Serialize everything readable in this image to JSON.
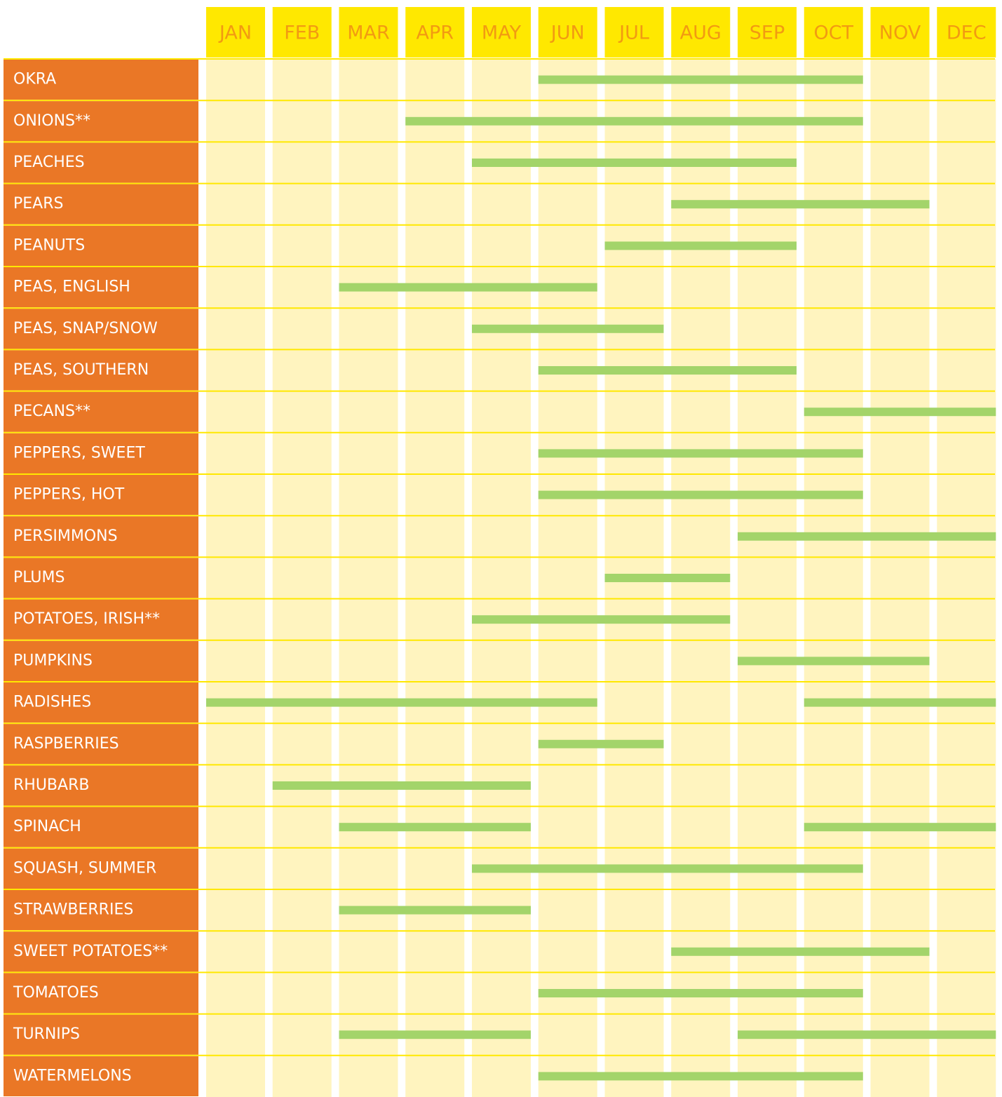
{
  "chart_data": {
    "type": "gantt",
    "categories": [
      "JAN",
      "FEB",
      "MAR",
      "APR",
      "MAY",
      "JUN",
      "JUL",
      "AUG",
      "SEP",
      "OCT",
      "NOV",
      "DEC"
    ],
    "color": "#a3d46a",
    "rows": [
      {
        "name": "OKRA",
        "spans": [
          [
            6,
            10
          ]
        ]
      },
      {
        "name": "ONIONS**",
        "spans": [
          [
            4,
            10
          ]
        ]
      },
      {
        "name": "PEACHES",
        "spans": [
          [
            5,
            9
          ]
        ]
      },
      {
        "name": "PEARS",
        "spans": [
          [
            8,
            11
          ]
        ]
      },
      {
        "name": "PEANUTS",
        "spans": [
          [
            7,
            9
          ]
        ]
      },
      {
        "name": "PEAS, ENGLISH",
        "spans": [
          [
            3,
            6
          ]
        ]
      },
      {
        "name": "PEAS, SNAP/SNOW",
        "spans": [
          [
            5,
            7
          ]
        ]
      },
      {
        "name": "PEAS, SOUTHERN",
        "spans": [
          [
            6,
            9
          ]
        ]
      },
      {
        "name": "PECANS**",
        "spans": [
          [
            10,
            12
          ]
        ]
      },
      {
        "name": "PEPPERS, SWEET",
        "spans": [
          [
            6,
            10
          ]
        ]
      },
      {
        "name": "PEPPERS, HOT",
        "spans": [
          [
            6,
            10
          ]
        ]
      },
      {
        "name": "PERSIMMONS",
        "spans": [
          [
            9,
            12
          ]
        ]
      },
      {
        "name": "PLUMS",
        "spans": [
          [
            7,
            8
          ]
        ]
      },
      {
        "name": "POTATOES, IRISH**",
        "spans": [
          [
            5,
            8
          ]
        ]
      },
      {
        "name": "PUMPKINS",
        "spans": [
          [
            9,
            11
          ]
        ]
      },
      {
        "name": "RADISHES",
        "spans": [
          [
            1,
            6
          ],
          [
            10,
            12
          ]
        ]
      },
      {
        "name": "RASPBERRIES",
        "spans": [
          [
            6,
            7
          ]
        ]
      },
      {
        "name": "RHUBARB",
        "spans": [
          [
            2,
            5
          ]
        ]
      },
      {
        "name": "SPINACH",
        "spans": [
          [
            3,
            5
          ],
          [
            10,
            12
          ]
        ]
      },
      {
        "name": "SQUASH, SUMMER",
        "spans": [
          [
            5,
            10
          ]
        ]
      },
      {
        "name": "STRAWBERRIES",
        "spans": [
          [
            3,
            5
          ]
        ]
      },
      {
        "name": "SWEET POTATOES**",
        "spans": [
          [
            8,
            11
          ]
        ]
      },
      {
        "name": "TOMATOES",
        "spans": [
          [
            6,
            10
          ]
        ]
      },
      {
        "name": "TURNIPS",
        "spans": [
          [
            3,
            5
          ],
          [
            9,
            12
          ]
        ]
      },
      {
        "name": "WATERMELONS",
        "spans": [
          [
            6,
            10
          ]
        ]
      }
    ]
  }
}
